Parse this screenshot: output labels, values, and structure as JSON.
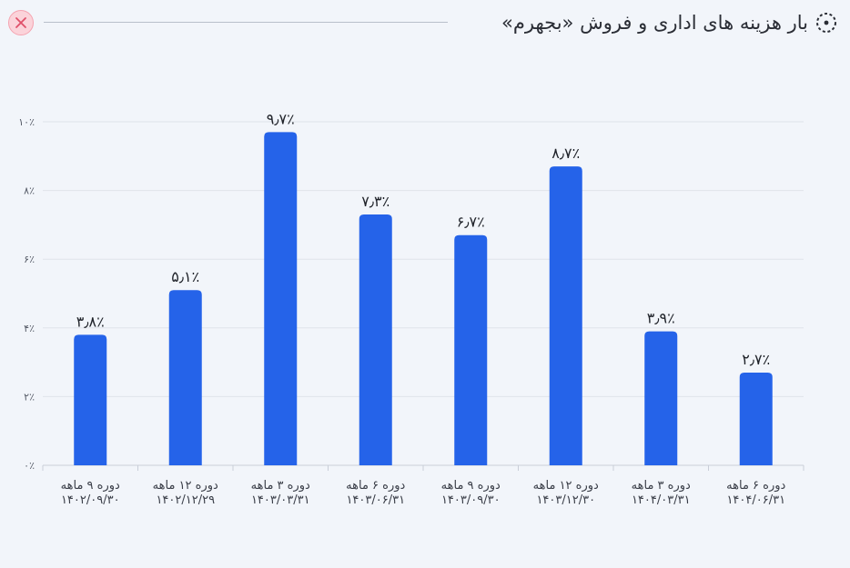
{
  "header": {
    "title": "بار هزینه های اداری و فروش «بجهرم»",
    "title_icon": "dotted-circle-icon",
    "close_icon": "close-icon"
  },
  "colors": {
    "bar": "#2563e9",
    "grid": "#dfe3ea",
    "close_bg": "#fbd3da",
    "close_x": "#e0506a"
  },
  "chart_data": {
    "type": "bar",
    "categories": [
      [
        "دوره ۹ ماهه",
        "۱۴۰۲/۰۹/۳۰"
      ],
      [
        "دوره ۱۲ ماهه",
        "۱۴۰۲/۱۲/۲۹"
      ],
      [
        "دوره ۳ ماهه",
        "۱۴۰۳/۰۳/۳۱"
      ],
      [
        "دوره ۶ ماهه",
        "۱۴۰۳/۰۶/۳۱"
      ],
      [
        "دوره ۹ ماهه",
        "۱۴۰۳/۰۹/۳۰"
      ],
      [
        "دوره ۱۲ ماهه",
        "۱۴۰۳/۱۲/۳۰"
      ],
      [
        "دوره ۳ ماهه",
        "۱۴۰۴/۰۳/۳۱"
      ],
      [
        "دوره ۶ ماهه",
        "۱۴۰۴/۰۶/۳۱"
      ]
    ],
    "values": [
      3.8,
      5.1,
      9.7,
      7.3,
      6.7,
      8.7,
      3.9,
      2.7
    ],
    "value_labels": [
      "۳٫۸٪",
      "۵٫۱٪",
      "۹٫۷٪",
      "۷٫۳٪",
      "۶٫۷٪",
      "۸٫۷٪",
      "۳٫۹٪",
      "۲٫۷٪"
    ],
    "y_ticks": [
      0,
      2,
      4,
      6,
      8,
      10
    ],
    "y_tick_labels": [
      "۰٪",
      "۲٪",
      "۴٪",
      "۶٪",
      "۸٪",
      "۱۰٪"
    ],
    "ylim": [
      0,
      10
    ],
    "grid": true,
    "legend": "none"
  }
}
